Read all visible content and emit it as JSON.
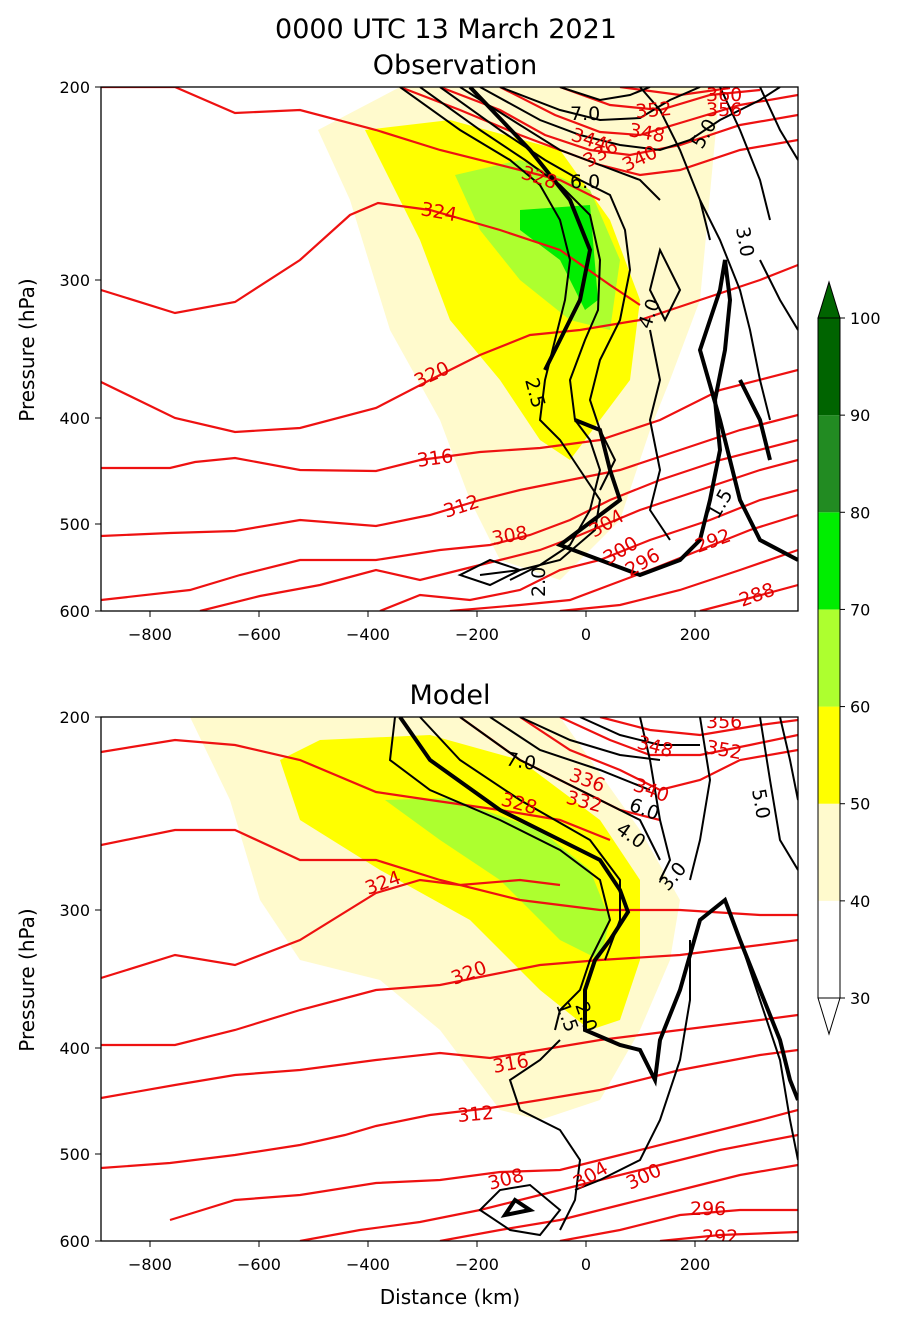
{
  "figure": {
    "suptitle_line1": "0000 UTC 13 March 2021",
    "colors": {
      "red_contour": "#ee1111",
      "black_contour": "#000000"
    }
  },
  "colorbar": {
    "levels": [
      30,
      40,
      50,
      60,
      70,
      80,
      90,
      100
    ],
    "tick_labels": [
      "30",
      "40",
      "50",
      "60",
      "70",
      "80",
      "90",
      "100"
    ],
    "colors": [
      "#ffffff",
      "#fffacd",
      "#ffff00",
      "#adff2f",
      "#00ee00",
      "#228b22",
      "#006400"
    ],
    "extend": "both"
  },
  "chart_data": [
    {
      "type": "contour",
      "title": "Observation",
      "xlabel": "",
      "ylabel": "Pressure (hPa)",
      "xlim": [
        -890,
        385
      ],
      "ylim": [
        600,
        200
      ],
      "yscale": "log",
      "xticks": [
        -800,
        -600,
        -400,
        -200,
        0,
        200
      ],
      "xtick_labels": [
        "−800",
        "−600",
        "−400",
        "−200",
        "0",
        "200"
      ],
      "yticks": [
        200,
        300,
        400,
        500,
        600
      ],
      "ytick_labels": [
        "200",
        "300",
        "400",
        "500",
        "600"
      ],
      "theta_contour_labels": [
        "324",
        "320",
        "316",
        "312",
        "308",
        "304",
        "300",
        "296",
        "292",
        "288",
        "328",
        "344",
        "348",
        "352",
        "356",
        "360",
        "340",
        "336"
      ],
      "black_contour_labels": [
        "2.5",
        "2.0",
        "1.5",
        "3.0",
        "4.0",
        "5.0",
        "6.0",
        "7.0"
      ],
      "shading_levels": [
        40,
        50,
        60,
        70
      ]
    },
    {
      "type": "contour",
      "title": "Model",
      "xlabel": "Distance (km)",
      "ylabel": "Pressure (hPa)",
      "xlim": [
        -890,
        385
      ],
      "ylim": [
        600,
        200
      ],
      "yscale": "log",
      "xticks": [
        -800,
        -600,
        -400,
        -200,
        0,
        200
      ],
      "xtick_labels": [
        "−800",
        "−600",
        "−400",
        "−200",
        "0",
        "200"
      ],
      "yticks": [
        200,
        300,
        400,
        500,
        600
      ],
      "ytick_labels": [
        "200",
        "300",
        "400",
        "500",
        "600"
      ],
      "theta_contour_labels": [
        "324",
        "320",
        "316",
        "312",
        "308",
        "304",
        "300",
        "296",
        "292",
        "328",
        "332",
        "336",
        "340",
        "348",
        "352",
        "356"
      ],
      "black_contour_labels": [
        "2.0",
        "1.5",
        "3.0",
        "4.0",
        "5.0",
        "6.0",
        "7.0"
      ],
      "shading_levels": [
        40,
        50,
        60
      ]
    }
  ]
}
